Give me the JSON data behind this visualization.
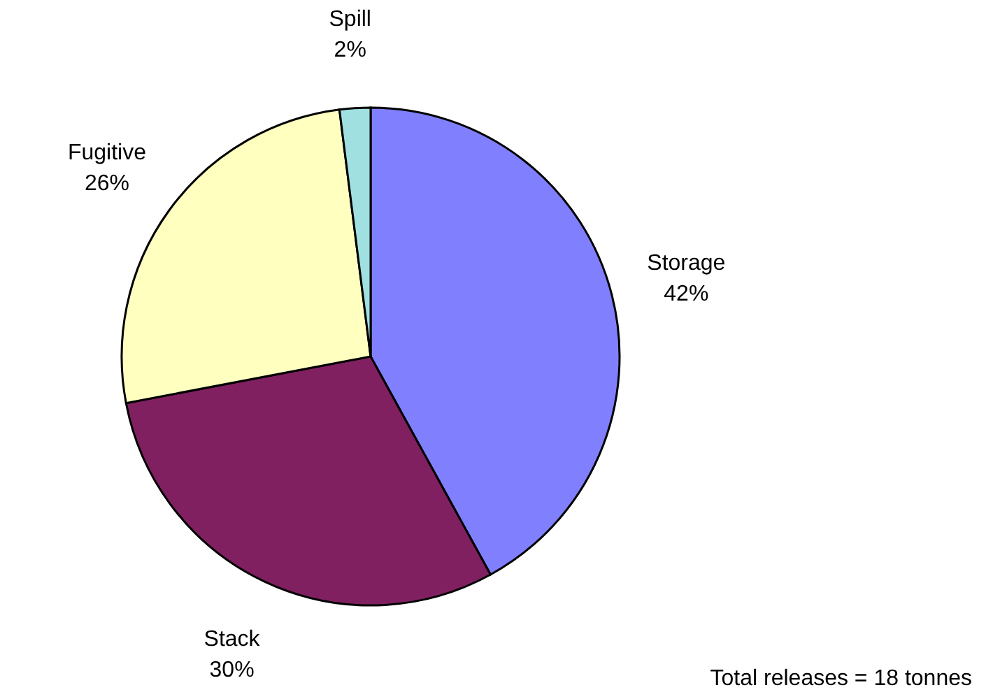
{
  "chart_data": {
    "type": "pie",
    "categories": [
      "Storage",
      "Stack",
      "Fugitive",
      "Spill"
    ],
    "values": [
      42,
      30,
      26,
      2
    ],
    "value_labels": [
      "42%",
      "30%",
      "26%",
      "2%"
    ],
    "colors": [
      "#8080ff",
      "#802060",
      "#ffffc0",
      "#a0e0e0"
    ],
    "legend": false,
    "annotations": [
      "Total releases = 18 tonnes"
    ]
  }
}
